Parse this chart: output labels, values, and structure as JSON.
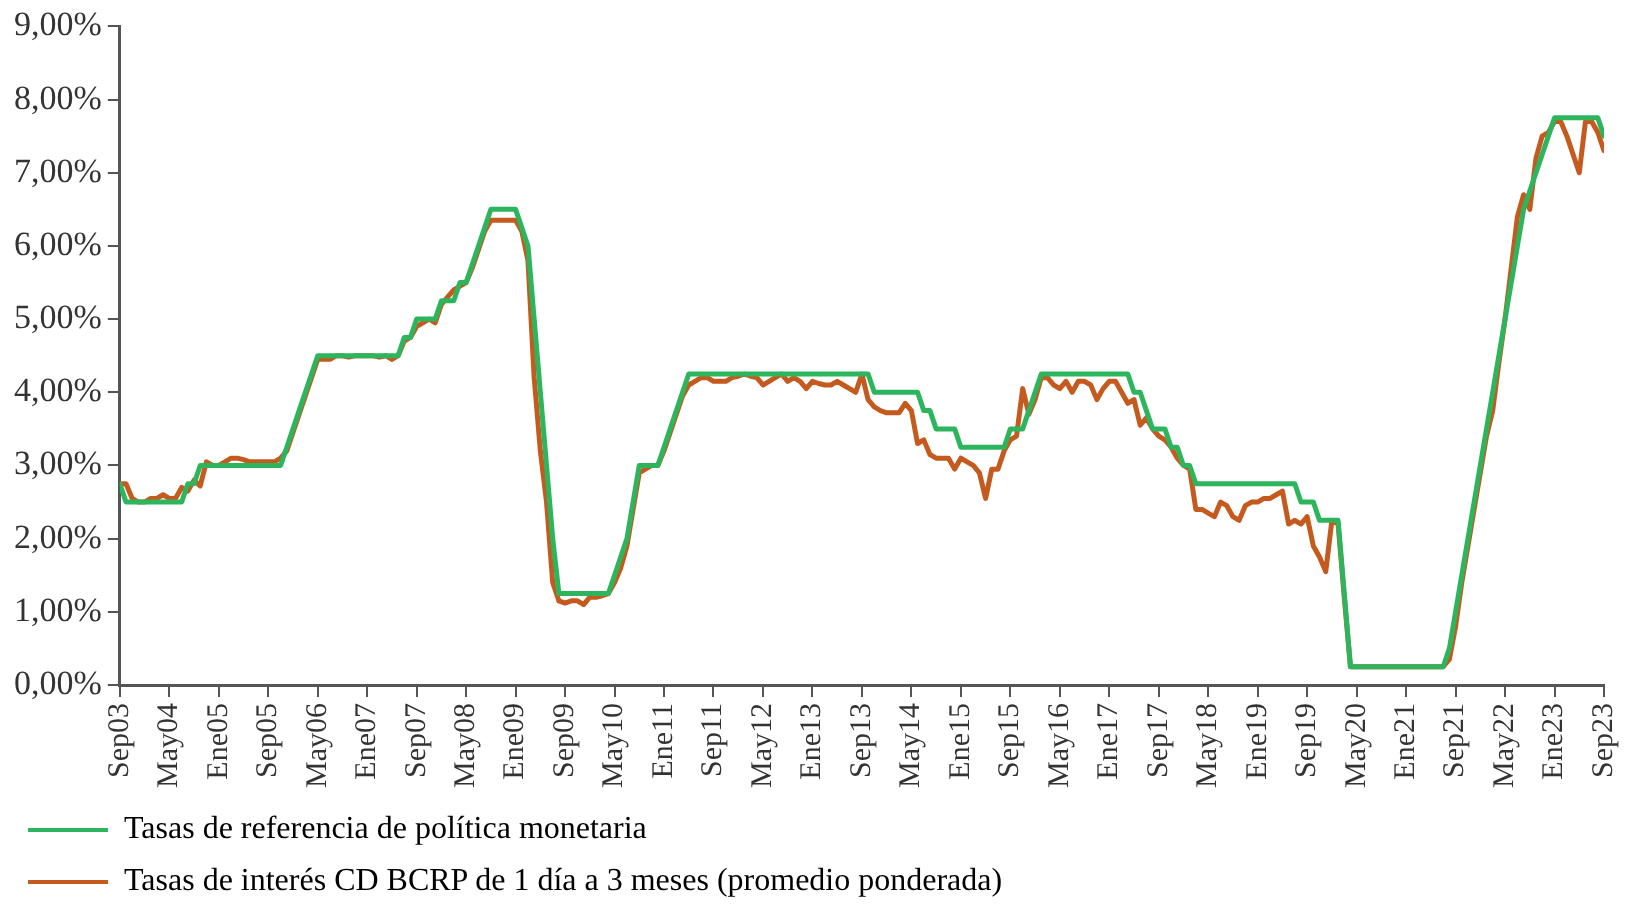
{
  "chart_data": {
    "type": "line",
    "x": [
      "2003-09",
      "2003-10",
      "2003-11",
      "2003-12",
      "2004-01",
      "2004-02",
      "2004-03",
      "2004-04",
      "2004-05",
      "2004-06",
      "2004-07",
      "2004-08",
      "2004-09",
      "2004-10",
      "2004-11",
      "2004-12",
      "2005-01",
      "2005-02",
      "2005-03",
      "2005-04",
      "2005-05",
      "2005-06",
      "2005-07",
      "2005-08",
      "2005-09",
      "2005-10",
      "2005-11",
      "2005-12",
      "2006-01",
      "2006-02",
      "2006-03",
      "2006-04",
      "2006-05",
      "2006-06",
      "2006-07",
      "2006-08",
      "2006-09",
      "2006-10",
      "2006-11",
      "2006-12",
      "2007-01",
      "2007-02",
      "2007-03",
      "2007-04",
      "2007-05",
      "2007-06",
      "2007-07",
      "2007-08",
      "2007-09",
      "2007-10",
      "2007-11",
      "2007-12",
      "2008-01",
      "2008-02",
      "2008-03",
      "2008-04",
      "2008-05",
      "2008-06",
      "2008-07",
      "2008-08",
      "2008-09",
      "2008-10",
      "2008-11",
      "2008-12",
      "2009-01",
      "2009-02",
      "2009-03",
      "2009-04",
      "2009-05",
      "2009-06",
      "2009-07",
      "2009-08",
      "2009-09",
      "2009-10",
      "2009-11",
      "2009-12",
      "2010-01",
      "2010-02",
      "2010-03",
      "2010-04",
      "2010-05",
      "2010-06",
      "2010-07",
      "2010-08",
      "2010-09",
      "2010-10",
      "2010-11",
      "2010-12",
      "2011-01",
      "2011-02",
      "2011-03",
      "2011-04",
      "2011-05",
      "2011-06",
      "2011-07",
      "2011-08",
      "2011-09",
      "2011-10",
      "2011-11",
      "2011-12",
      "2012-01",
      "2012-02",
      "2012-03",
      "2012-04",
      "2012-05",
      "2012-06",
      "2012-07",
      "2012-08",
      "2012-09",
      "2012-10",
      "2012-11",
      "2012-12",
      "2013-01",
      "2013-02",
      "2013-03",
      "2013-04",
      "2013-05",
      "2013-06",
      "2013-07",
      "2013-08",
      "2013-09",
      "2013-10",
      "2013-11",
      "2013-12",
      "2014-01",
      "2014-02",
      "2014-03",
      "2014-04",
      "2014-05",
      "2014-06",
      "2014-07",
      "2014-08",
      "2014-09",
      "2014-10",
      "2014-11",
      "2014-12",
      "2015-01",
      "2015-02",
      "2015-03",
      "2015-04",
      "2015-05",
      "2015-06",
      "2015-07",
      "2015-08",
      "2015-09",
      "2015-10",
      "2015-11",
      "2015-12",
      "2016-01",
      "2016-02",
      "2016-03",
      "2016-04",
      "2016-05",
      "2016-06",
      "2016-07",
      "2016-08",
      "2016-09",
      "2016-10",
      "2016-11",
      "2016-12",
      "2017-01",
      "2017-02",
      "2017-03",
      "2017-04",
      "2017-05",
      "2017-06",
      "2017-07",
      "2017-08",
      "2017-09",
      "2017-10",
      "2017-11",
      "2017-12",
      "2018-01",
      "2018-02",
      "2018-03",
      "2018-04",
      "2018-05",
      "2018-06",
      "2018-07",
      "2018-08",
      "2018-09",
      "2018-10",
      "2018-11",
      "2018-12",
      "2019-01",
      "2019-02",
      "2019-03",
      "2019-04",
      "2019-05",
      "2019-06",
      "2019-07",
      "2019-08",
      "2019-09",
      "2019-10",
      "2019-11",
      "2019-12",
      "2020-01",
      "2020-02",
      "2020-03",
      "2020-04",
      "2020-05",
      "2020-06",
      "2020-07",
      "2020-08",
      "2020-09",
      "2020-10",
      "2020-11",
      "2020-12",
      "2021-01",
      "2021-02",
      "2021-03",
      "2021-04",
      "2021-05",
      "2021-06",
      "2021-07",
      "2021-08",
      "2021-09",
      "2021-10",
      "2021-11",
      "2021-12",
      "2022-01",
      "2022-02",
      "2022-03",
      "2022-04",
      "2022-05",
      "2022-06",
      "2022-07",
      "2022-08",
      "2022-09",
      "2022-10",
      "2022-11",
      "2022-12",
      "2023-01",
      "2023-02",
      "2023-03",
      "2023-04",
      "2023-05",
      "2023-06",
      "2023-07",
      "2023-08",
      "2023-09"
    ],
    "series": [
      {
        "name": "Tasas de referencia de política monetaria",
        "color": "#2db55d",
        "values": [
          2.75,
          2.5,
          2.5,
          2.5,
          2.5,
          2.5,
          2.5,
          2.5,
          2.5,
          2.5,
          2.5,
          2.75,
          2.75,
          3.0,
          3.0,
          3.0,
          3.0,
          3.0,
          3.0,
          3.0,
          3.0,
          3.0,
          3.0,
          3.0,
          3.0,
          3.0,
          3.0,
          3.25,
          3.5,
          3.75,
          4.0,
          4.25,
          4.5,
          4.5,
          4.5,
          4.5,
          4.5,
          4.5,
          4.5,
          4.5,
          4.5,
          4.5,
          4.5,
          4.5,
          4.5,
          4.5,
          4.75,
          4.75,
          5.0,
          5.0,
          5.0,
          5.0,
          5.25,
          5.25,
          5.25,
          5.5,
          5.5,
          5.75,
          6.0,
          6.25,
          6.5,
          6.5,
          6.5,
          6.5,
          6.5,
          6.25,
          6.0,
          5.0,
          4.0,
          3.0,
          2.0,
          1.25,
          1.25,
          1.25,
          1.25,
          1.25,
          1.25,
          1.25,
          1.25,
          1.25,
          1.5,
          1.75,
          2.0,
          2.5,
          3.0,
          3.0,
          3.0,
          3.0,
          3.25,
          3.5,
          3.75,
          4.0,
          4.25,
          4.25,
          4.25,
          4.25,
          4.25,
          4.25,
          4.25,
          4.25,
          4.25,
          4.25,
          4.25,
          4.25,
          4.25,
          4.25,
          4.25,
          4.25,
          4.25,
          4.25,
          4.25,
          4.25,
          4.25,
          4.25,
          4.25,
          4.25,
          4.25,
          4.25,
          4.25,
          4.25,
          4.25,
          4.25,
          4.0,
          4.0,
          4.0,
          4.0,
          4.0,
          4.0,
          4.0,
          4.0,
          3.75,
          3.75,
          3.5,
          3.5,
          3.5,
          3.5,
          3.25,
          3.25,
          3.25,
          3.25,
          3.25,
          3.25,
          3.25,
          3.25,
          3.5,
          3.5,
          3.5,
          3.75,
          4.0,
          4.25,
          4.25,
          4.25,
          4.25,
          4.25,
          4.25,
          4.25,
          4.25,
          4.25,
          4.25,
          4.25,
          4.25,
          4.25,
          4.25,
          4.25,
          4.0,
          4.0,
          3.75,
          3.5,
          3.5,
          3.5,
          3.25,
          3.25,
          3.0,
          3.0,
          2.75,
          2.75,
          2.75,
          2.75,
          2.75,
          2.75,
          2.75,
          2.75,
          2.75,
          2.75,
          2.75,
          2.75,
          2.75,
          2.75,
          2.75,
          2.75,
          2.75,
          2.5,
          2.5,
          2.5,
          2.25,
          2.25,
          2.25,
          2.25,
          1.25,
          0.25,
          0.25,
          0.25,
          0.25,
          0.25,
          0.25,
          0.25,
          0.25,
          0.25,
          0.25,
          0.25,
          0.25,
          0.25,
          0.25,
          0.25,
          0.25,
          0.5,
          1.0,
          1.5,
          2.0,
          2.5,
          3.0,
          3.5,
          4.0,
          4.5,
          5.0,
          5.5,
          6.0,
          6.5,
          6.75,
          7.0,
          7.25,
          7.5,
          7.75,
          7.75,
          7.75,
          7.75,
          7.75,
          7.75,
          7.75,
          7.75,
          7.5
        ]
      },
      {
        "name": "Tasas de interés CD BCRP de 1 día a 3 meses (promedio ponderada)",
        "color": "#c55a1e",
        "values": [
          2.75,
          2.75,
          2.55,
          2.5,
          2.5,
          2.55,
          2.55,
          2.6,
          2.55,
          2.55,
          2.7,
          2.65,
          2.8,
          2.72,
          3.05,
          3.0,
          3.0,
          3.05,
          3.1,
          3.1,
          3.08,
          3.05,
          3.05,
          3.05,
          3.05,
          3.05,
          3.1,
          3.2,
          3.45,
          3.7,
          3.95,
          4.2,
          4.45,
          4.45,
          4.45,
          4.5,
          4.5,
          4.48,
          4.5,
          4.5,
          4.5,
          4.5,
          4.48,
          4.5,
          4.45,
          4.5,
          4.7,
          4.75,
          4.9,
          4.95,
          5.0,
          4.95,
          5.2,
          5.3,
          5.4,
          5.45,
          5.5,
          5.7,
          5.95,
          6.2,
          6.35,
          6.35,
          6.35,
          6.35,
          6.35,
          6.2,
          5.8,
          4.2,
          3.2,
          2.5,
          1.4,
          1.15,
          1.12,
          1.15,
          1.15,
          1.1,
          1.2,
          1.2,
          1.22,
          1.25,
          1.4,
          1.6,
          1.9,
          2.4,
          2.9,
          2.95,
          3.0,
          3.0,
          3.2,
          3.45,
          3.7,
          3.95,
          4.1,
          4.15,
          4.2,
          4.2,
          4.15,
          4.15,
          4.15,
          4.2,
          4.22,
          4.25,
          4.22,
          4.2,
          4.1,
          4.15,
          4.2,
          4.25,
          4.15,
          4.2,
          4.15,
          4.05,
          4.15,
          4.12,
          4.1,
          4.1,
          4.15,
          4.1,
          4.05,
          4.0,
          4.25,
          3.9,
          3.8,
          3.75,
          3.72,
          3.72,
          3.72,
          3.85,
          3.75,
          3.3,
          3.35,
          3.15,
          3.1,
          3.1,
          3.1,
          2.95,
          3.1,
          3.05,
          3.0,
          2.9,
          2.55,
          2.95,
          2.95,
          3.2,
          3.35,
          3.4,
          4.05,
          3.7,
          3.9,
          4.2,
          4.2,
          4.1,
          4.05,
          4.15,
          4.0,
          4.15,
          4.15,
          4.1,
          3.9,
          4.05,
          4.15,
          4.15,
          4.0,
          3.85,
          3.9,
          3.55,
          3.65,
          3.5,
          3.4,
          3.35,
          3.25,
          3.1,
          3.0,
          2.95,
          2.4,
          2.4,
          2.35,
          2.3,
          2.5,
          2.45,
          2.3,
          2.25,
          2.45,
          2.5,
          2.5,
          2.55,
          2.55,
          2.6,
          2.65,
          2.2,
          2.25,
          2.2,
          2.3,
          1.9,
          1.75,
          1.55,
          2.25,
          2.2,
          1.2,
          0.25,
          0.25,
          0.25,
          0.25,
          0.25,
          0.25,
          0.25,
          0.25,
          0.25,
          0.25,
          0.25,
          0.25,
          0.25,
          0.25,
          0.25,
          0.25,
          0.35,
          0.8,
          1.4,
          1.9,
          2.4,
          2.9,
          3.4,
          3.75,
          4.4,
          5.0,
          5.7,
          6.4,
          6.7,
          6.5,
          7.2,
          7.5,
          7.55,
          7.7,
          7.7,
          7.5,
          7.25,
          7.0,
          7.7,
          7.7,
          7.55,
          7.3
        ]
      }
    ],
    "xlim": [
      "2003-09",
      "2023-09"
    ],
    "xticks": [
      {
        "value": "2003-09",
        "label": "Sep03"
      },
      {
        "value": "2004-05",
        "label": "May04"
      },
      {
        "value": "2005-01",
        "label": "Ene05"
      },
      {
        "value": "2005-09",
        "label": "Sep05"
      },
      {
        "value": "2006-05",
        "label": "May06"
      },
      {
        "value": "2007-01",
        "label": "Ene07"
      },
      {
        "value": "2007-09",
        "label": "Sep07"
      },
      {
        "value": "2008-05",
        "label": "May08"
      },
      {
        "value": "2009-01",
        "label": "Ene09"
      },
      {
        "value": "2009-09",
        "label": "Sep09"
      },
      {
        "value": "2010-05",
        "label": "May10"
      },
      {
        "value": "2011-01",
        "label": "Ene11"
      },
      {
        "value": "2011-09",
        "label": "Sep11"
      },
      {
        "value": "2012-05",
        "label": "May12"
      },
      {
        "value": "2013-01",
        "label": "Ene13"
      },
      {
        "value": "2013-09",
        "label": "Sep13"
      },
      {
        "value": "2014-05",
        "label": "May14"
      },
      {
        "value": "2015-01",
        "label": "Ene15"
      },
      {
        "value": "2015-09",
        "label": "Sep15"
      },
      {
        "value": "2016-05",
        "label": "May16"
      },
      {
        "value": "2017-01",
        "label": "Ene17"
      },
      {
        "value": "2017-09",
        "label": "Sep17"
      },
      {
        "value": "2018-05",
        "label": "May18"
      },
      {
        "value": "2019-01",
        "label": "Ene19"
      },
      {
        "value": "2019-09",
        "label": "Sep19"
      },
      {
        "value": "2020-05",
        "label": "May20"
      },
      {
        "value": "2021-01",
        "label": "Ene21"
      },
      {
        "value": "2021-09",
        "label": "Sep21"
      },
      {
        "value": "2022-05",
        "label": "May22"
      },
      {
        "value": "2023-01",
        "label": "Ene23"
      },
      {
        "value": "2023-09",
        "label": "Sep23"
      }
    ],
    "ylim": [
      0,
      9
    ],
    "yticks": [
      {
        "value": 0,
        "label": "0,00%"
      },
      {
        "value": 1,
        "label": "1,00%"
      },
      {
        "value": 2,
        "label": "2,00%"
      },
      {
        "value": 3,
        "label": "3,00%"
      },
      {
        "value": 4,
        "label": "4,00%"
      },
      {
        "value": 5,
        "label": "5,00%"
      },
      {
        "value": 6,
        "label": "6,00%"
      },
      {
        "value": 7,
        "label": "7,00%"
      },
      {
        "value": 8,
        "label": "8,00%"
      },
      {
        "value": 9,
        "label": "9,00%"
      }
    ],
    "grid": false,
    "legend": "bottom",
    "marker": "none",
    "line_style": "solid"
  }
}
